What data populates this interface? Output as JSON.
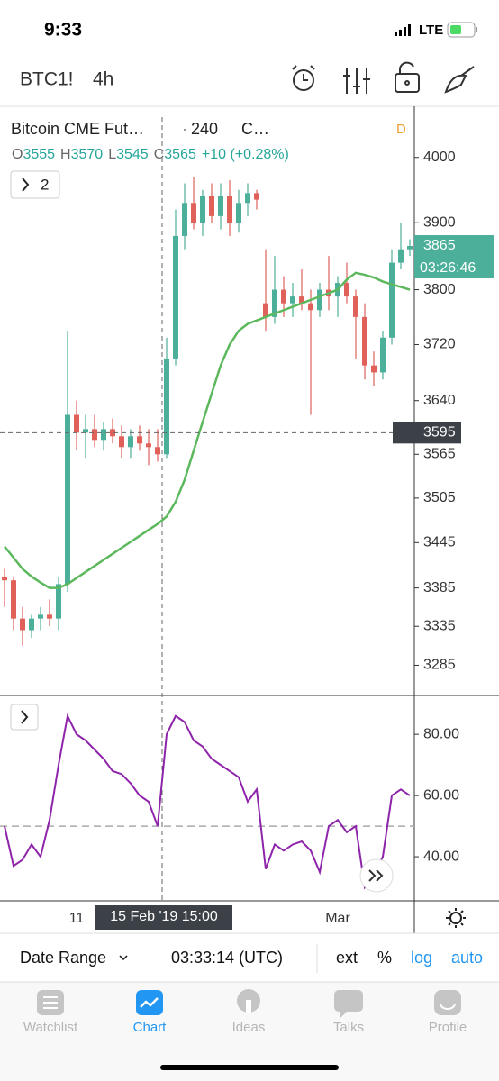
{
  "status": {
    "time": "9:33",
    "network": "LTE"
  },
  "toolbar": {
    "symbol": "BTC1!",
    "interval": "4h"
  },
  "legend": {
    "name": "Bitcoin CME Fut…",
    "interval": "240",
    "exchange": "C…",
    "session": "D",
    "ohlc": [
      {
        "label": "O",
        "value": 3555
      },
      {
        "label": "H",
        "value": 3570
      },
      {
        "label": "L",
        "value": 3545
      },
      {
        "label": "C",
        "value": 3565
      }
    ],
    "change": "+10 (+0.28%)"
  },
  "indicators_button": "2",
  "chart_data": [
    {
      "type": "candlestick",
      "log_scale": true,
      "up_color": "#4caf9a",
      "down_color": "#e0605a",
      "open": [
        3400,
        3395,
        3345,
        3330,
        3345,
        3350,
        3345,
        3390,
        3620,
        3595,
        3600,
        3585,
        3600,
        3590,
        3575,
        3590,
        3580,
        3575,
        3565,
        3700,
        3880,
        3930,
        3900,
        3940,
        3910,
        3940,
        3900,
        3930,
        3945,
        3780,
        3760,
        3800,
        3780,
        3790,
        3780,
        3770,
        3800,
        3790,
        3810,
        3790,
        3760,
        3690,
        3680,
        3730,
        3840,
        3860
      ],
      "high": [
        3410,
        3400,
        3360,
        3350,
        3360,
        3370,
        3400,
        3740,
        3640,
        3620,
        3620,
        3610,
        3615,
        3605,
        3600,
        3605,
        3600,
        3600,
        3730,
        3920,
        3960,
        3970,
        3950,
        3960,
        3960,
        3965,
        3950,
        3960,
        3950,
        3860,
        3850,
        3820,
        3810,
        3830,
        3800,
        3810,
        3850,
        3820,
        3840,
        3800,
        3780,
        3710,
        3740,
        3860,
        3900,
        3875
      ],
      "low": [
        3360,
        3330,
        3310,
        3320,
        3330,
        3335,
        3330,
        3380,
        3570,
        3560,
        3575,
        3570,
        3580,
        3560,
        3560,
        3570,
        3550,
        3555,
        3560,
        3690,
        3860,
        3890,
        3880,
        3900,
        3890,
        3880,
        3885,
        3910,
        3920,
        3740,
        3750,
        3760,
        3760,
        3770,
        3620,
        3760,
        3770,
        3760,
        3780,
        3700,
        3670,
        3660,
        3670,
        3720,
        3830,
        3850
      ],
      "close": [
        3395,
        3345,
        3330,
        3345,
        3350,
        3345,
        3390,
        3620,
        3595,
        3600,
        3585,
        3600,
        3590,
        3575,
        3590,
        3580,
        3575,
        3565,
        3700,
        3880,
        3930,
        3900,
        3940,
        3910,
        3940,
        3900,
        3930,
        3945,
        3935,
        3760,
        3800,
        3780,
        3790,
        3780,
        3770,
        3800,
        3790,
        3810,
        3790,
        3760,
        3690,
        3680,
        3730,
        3840,
        3860,
        3865
      ],
      "categories": [
        null,
        null,
        null,
        null,
        null,
        null,
        null,
        null,
        "11",
        null,
        null,
        null,
        null,
        null,
        null,
        null,
        null,
        null,
        null,
        null,
        null,
        null,
        null,
        null,
        null,
        null,
        null,
        null,
        null,
        null,
        null,
        null,
        null,
        null,
        null,
        null,
        null,
        "Mar",
        null,
        null,
        null,
        null,
        null,
        null,
        null,
        null
      ],
      "moving_average": {
        "color": "#5cb85c",
        "values": [
          3440,
          3425,
          3410,
          3400,
          3392,
          3385,
          3385,
          3390,
          3398,
          3406,
          3414,
          3422,
          3430,
          3438,
          3446,
          3454,
          3462,
          3470,
          3480,
          3500,
          3530,
          3570,
          3610,
          3650,
          3690,
          3720,
          3740,
          3750,
          3755,
          3760,
          3765,
          3770,
          3775,
          3780,
          3785,
          3790,
          3795,
          3800,
          3815,
          3825,
          3822,
          3818,
          3812,
          3808,
          3804,
          3800
        ]
      },
      "ylim": [
        3249,
        4063
      ],
      "yticks": [
        4000,
        3900,
        3800,
        3720,
        3640,
        3565,
        3505,
        3445,
        3385,
        3335,
        3285
      ],
      "last_price": 3865,
      "countdown": "03:26:46",
      "crosshair_price": 3595,
      "crosshair_time": "15 Feb '19  15:00"
    },
    {
      "type": "line",
      "color": "#8e24aa",
      "values": [
        50,
        37,
        39,
        44,
        40,
        52,
        70,
        86,
        80,
        78,
        75,
        72,
        68,
        67,
        64,
        60,
        58,
        50,
        80,
        86,
        84,
        78,
        76,
        72,
        70,
        68,
        66,
        58,
        62,
        36,
        44,
        42,
        44,
        45,
        42,
        35,
        50,
        52,
        48,
        50,
        30,
        34,
        40,
        60,
        62,
        60
      ],
      "ylim": [
        25.6,
        92.4
      ],
      "yticks": [
        {
          "value": 80,
          "label": "80.00"
        },
        {
          "value": 60,
          "label": "60.00"
        },
        {
          "value": 40,
          "label": "40.00"
        }
      ],
      "reference": 50
    }
  ],
  "bottom_bar": {
    "date_range": "Date Range",
    "clock": "03:33:14 (UTC)",
    "ext": "ext",
    "percent": "%",
    "log": "log",
    "auto": "auto"
  },
  "tabs": [
    "Watchlist",
    "Chart",
    "Ideas",
    "Talks",
    "Profile"
  ]
}
